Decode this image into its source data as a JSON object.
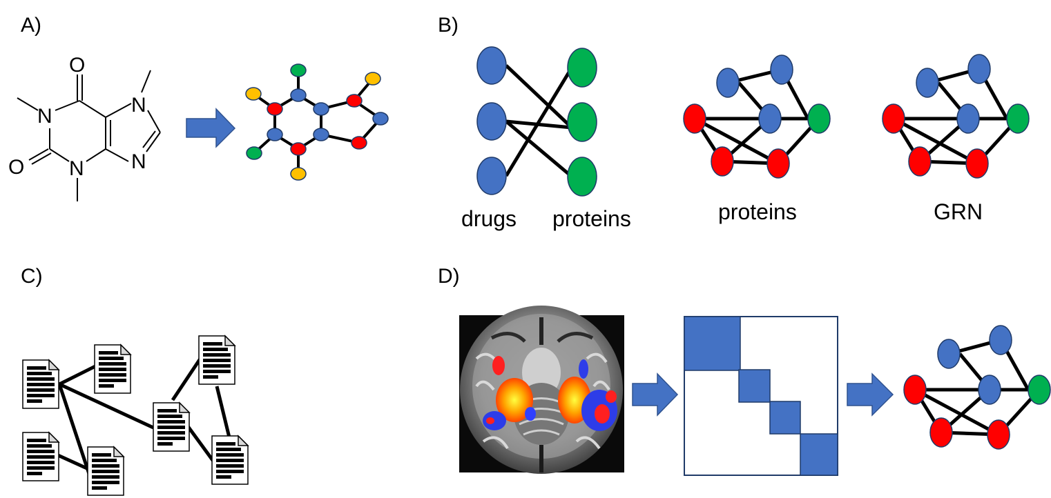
{
  "panels": {
    "a": {
      "label": "A)"
    },
    "b": {
      "label": "B)"
    },
    "c": {
      "label": "C)"
    },
    "d": {
      "label": "D)"
    }
  },
  "molecule": {
    "atoms": {
      "o_top": "O",
      "o_left": "O",
      "n1": "N",
      "n3": "N",
      "n7": "N",
      "n9": "N"
    }
  },
  "captions": {
    "drugs": "drugs",
    "proteins_bipartite": "proteins",
    "proteins_network": "proteins",
    "grn": "GRN"
  },
  "colors": {
    "blue_node": "#4472c4",
    "red_node": "#ff0000",
    "green_node": "#00b050",
    "yellow_node": "#ffc000",
    "arrow": "#4472c4",
    "matrix_block": "#4472c4"
  },
  "icons": {
    "transform_arrow": "right-arrow-icon",
    "document": "document-icon",
    "brain_scan": "brain-fmri-image"
  }
}
